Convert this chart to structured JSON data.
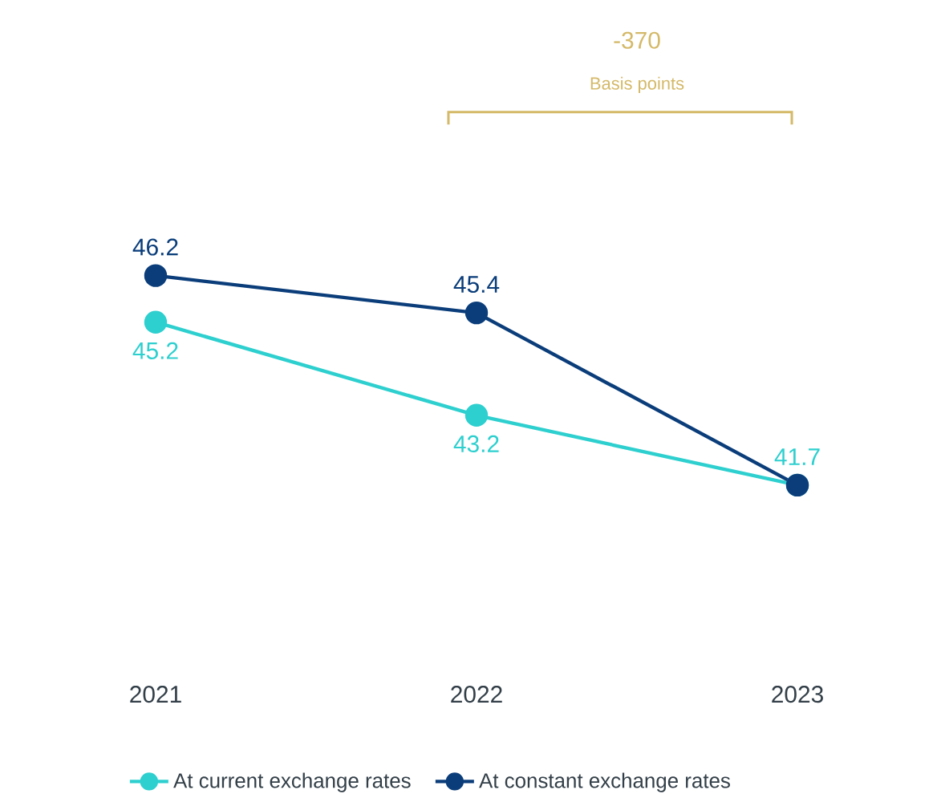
{
  "chart_data": {
    "type": "line",
    "categories": [
      "2021",
      "2022",
      "2023"
    ],
    "series": [
      {
        "name": "At current exchange rates",
        "color": "#2ecfcf",
        "values": [
          45.2,
          43.2,
          41.7
        ],
        "value_labels": [
          "45.2",
          "43.2",
          "41.7"
        ]
      },
      {
        "name": "At constant exchange rates",
        "color": "#0a3d7a",
        "values": [
          46.2,
          45.4,
          41.7
        ],
        "value_labels": [
          "46.2",
          "45.4",
          null
        ]
      }
    ],
    "annotations": [
      "-370",
      "Basis points"
    ],
    "marker": "circle",
    "legend": "bottom"
  }
}
